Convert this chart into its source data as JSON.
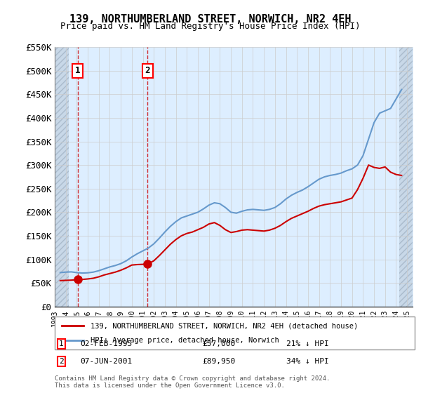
{
  "title": "139, NORTHUMBERLAND STREET, NORWICH, NR2 4EH",
  "subtitle": "Price paid vs. HM Land Registry's House Price Index (HPI)",
  "ylim": [
    0,
    550000
  ],
  "yticks": [
    0,
    50000,
    100000,
    150000,
    200000,
    250000,
    300000,
    350000,
    400000,
    450000,
    500000,
    550000
  ],
  "ytick_labels": [
    "£0",
    "£50K",
    "£100K",
    "£150K",
    "£200K",
    "£250K",
    "£300K",
    "£350K",
    "£400K",
    "£450K",
    "£500K",
    "£550K"
  ],
  "sale1_date": 1995.09,
  "sale1_price": 57000,
  "sale2_date": 2001.44,
  "sale2_price": 89950,
  "legend_red": "139, NORTHUMBERLAND STREET, NORWICH, NR2 4EH (detached house)",
  "legend_blue": "HPI: Average price, detached house, Norwich",
  "note1_label": "1",
  "note1_date": "02-FEB-1995",
  "note1_price": "£57,000",
  "note1_hpi": "21% ↓ HPI",
  "note2_label": "2",
  "note2_date": "07-JUN-2001",
  "note2_price": "£89,950",
  "note2_hpi": "34% ↓ HPI",
  "footer": "Contains HM Land Registry data © Crown copyright and database right 2024.\nThis data is licensed under the Open Government Licence v3.0.",
  "hpi_color": "#6699cc",
  "sale_color": "#cc0000",
  "bg_hatch_color": "#ccddee",
  "grid_color": "#cccccc",
  "sale1_vline_x": 1995.09,
  "sale2_vline_x": 2001.44
}
